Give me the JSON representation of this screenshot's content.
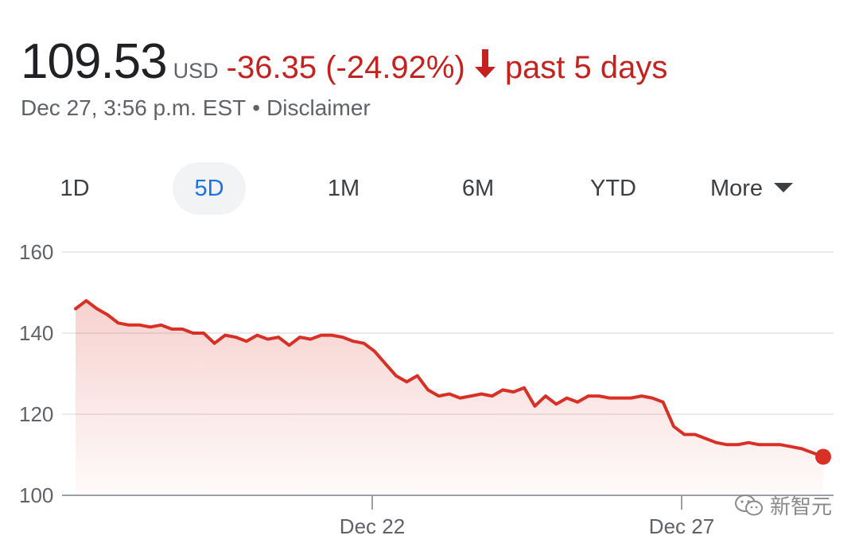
{
  "header": {
    "price": "109.53",
    "currency": "USD",
    "change": "-36.35 (-24.92%)",
    "period": "past 5 days",
    "trend_icon": "arrow-down-icon"
  },
  "subline": {
    "timestamp": "Dec 27, 3:56 p.m. EST",
    "separator": "•",
    "disclaimer": "Disclaimer"
  },
  "tabs": [
    {
      "label": "1D",
      "active": false
    },
    {
      "label": "5D",
      "active": true
    },
    {
      "label": "1M",
      "active": false
    },
    {
      "label": "6M",
      "active": false
    },
    {
      "label": "YTD",
      "active": false
    },
    {
      "label": "More",
      "active": false
    }
  ],
  "colors": {
    "down": "#d93025",
    "accent": "#1a73e8",
    "grid": "#e8eaed",
    "axis": "#5f6368"
  },
  "watermark": "新智元",
  "chart_data": {
    "type": "area",
    "title": "",
    "xlabel": "",
    "ylabel": "",
    "ylim": [
      100,
      160
    ],
    "y_ticks": [
      100,
      120,
      140,
      160
    ],
    "x_ticks": [
      "Dec 22",
      "Dec 27"
    ],
    "grid": true,
    "series": [
      {
        "values": [
          146,
          148,
          146,
          144.5,
          142.5,
          142,
          142,
          141.5,
          142,
          141,
          141,
          140,
          140,
          137.5,
          139.5,
          139,
          138,
          139.5,
          138.5,
          139,
          137,
          139,
          138.5,
          139.5,
          139.5,
          139,
          138,
          137.5,
          135.5,
          132.5,
          129.5,
          128,
          129.5,
          126,
          124.5,
          125,
          124,
          124.5,
          125,
          124.5,
          126,
          125.5,
          126.5,
          122,
          124.5,
          122.5,
          124,
          123,
          124.5,
          124.5,
          124,
          124,
          124,
          124.5,
          124,
          123,
          117,
          115,
          115,
          114,
          113,
          112.5,
          112.5,
          113,
          112.5,
          112.5,
          112.5,
          112,
          111.5,
          110.5,
          109.5
        ]
      }
    ]
  }
}
